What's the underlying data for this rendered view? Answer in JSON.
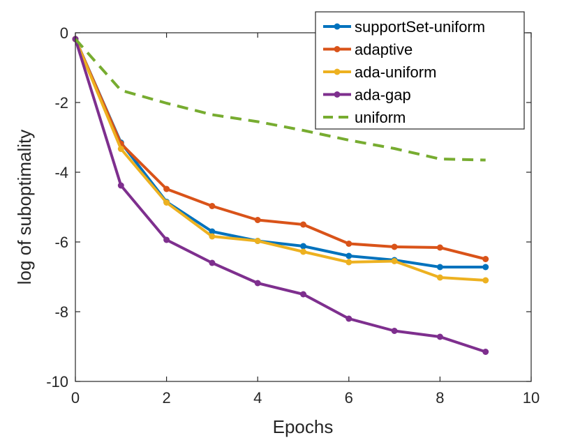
{
  "chart_data": {
    "type": "line",
    "title": "",
    "xlabel": "Epochs",
    "ylabel": "log of suboptimality",
    "xlim": [
      0,
      10
    ],
    "ylim": [
      -10,
      0
    ],
    "xticks": [
      0,
      2,
      4,
      6,
      8,
      10
    ],
    "yticks": [
      0,
      -2,
      -4,
      -6,
      -8,
      -10
    ],
    "xtick_labels": [
      "0",
      "2",
      "4",
      "6",
      "8",
      "10"
    ],
    "ytick_labels": [
      "0",
      "-2",
      "-4",
      "-6",
      "-8",
      "-10"
    ],
    "grid": false,
    "legend_position": "top-right",
    "x": [
      0,
      1,
      2,
      3,
      4,
      5,
      6,
      7,
      8,
      9
    ],
    "series": [
      {
        "name": "supportSet-uniform",
        "color": "#0072BD",
        "style": "solid",
        "markers": true,
        "values": [
          -0.18,
          -3.15,
          -4.85,
          -5.7,
          -5.97,
          -6.12,
          -6.4,
          -6.52,
          -6.72,
          -6.72
        ]
      },
      {
        "name": "adaptive",
        "color": "#D95319",
        "style": "solid",
        "markers": true,
        "values": [
          -0.18,
          -3.18,
          -4.48,
          -4.97,
          -5.37,
          -5.5,
          -6.05,
          -6.14,
          -6.16,
          -6.49
        ]
      },
      {
        "name": "ada-uniform",
        "color": "#EDB120",
        "style": "solid",
        "markers": true,
        "values": [
          -0.18,
          -3.33,
          -4.87,
          -5.84,
          -5.97,
          -6.28,
          -6.58,
          -6.55,
          -7.02,
          -7.1
        ]
      },
      {
        "name": "ada-gap",
        "color": "#7E2F8E",
        "style": "solid",
        "markers": true,
        "values": [
          -0.18,
          -4.38,
          -5.94,
          -6.6,
          -7.18,
          -7.5,
          -8.2,
          -8.55,
          -8.72,
          -9.15
        ]
      },
      {
        "name": "uniform",
        "color": "#77AC30",
        "style": "dashed",
        "markers": false,
        "values": [
          -0.18,
          -1.65,
          -2.02,
          -2.35,
          -2.55,
          -2.8,
          -3.08,
          -3.32,
          -3.62,
          -3.65
        ]
      }
    ]
  }
}
